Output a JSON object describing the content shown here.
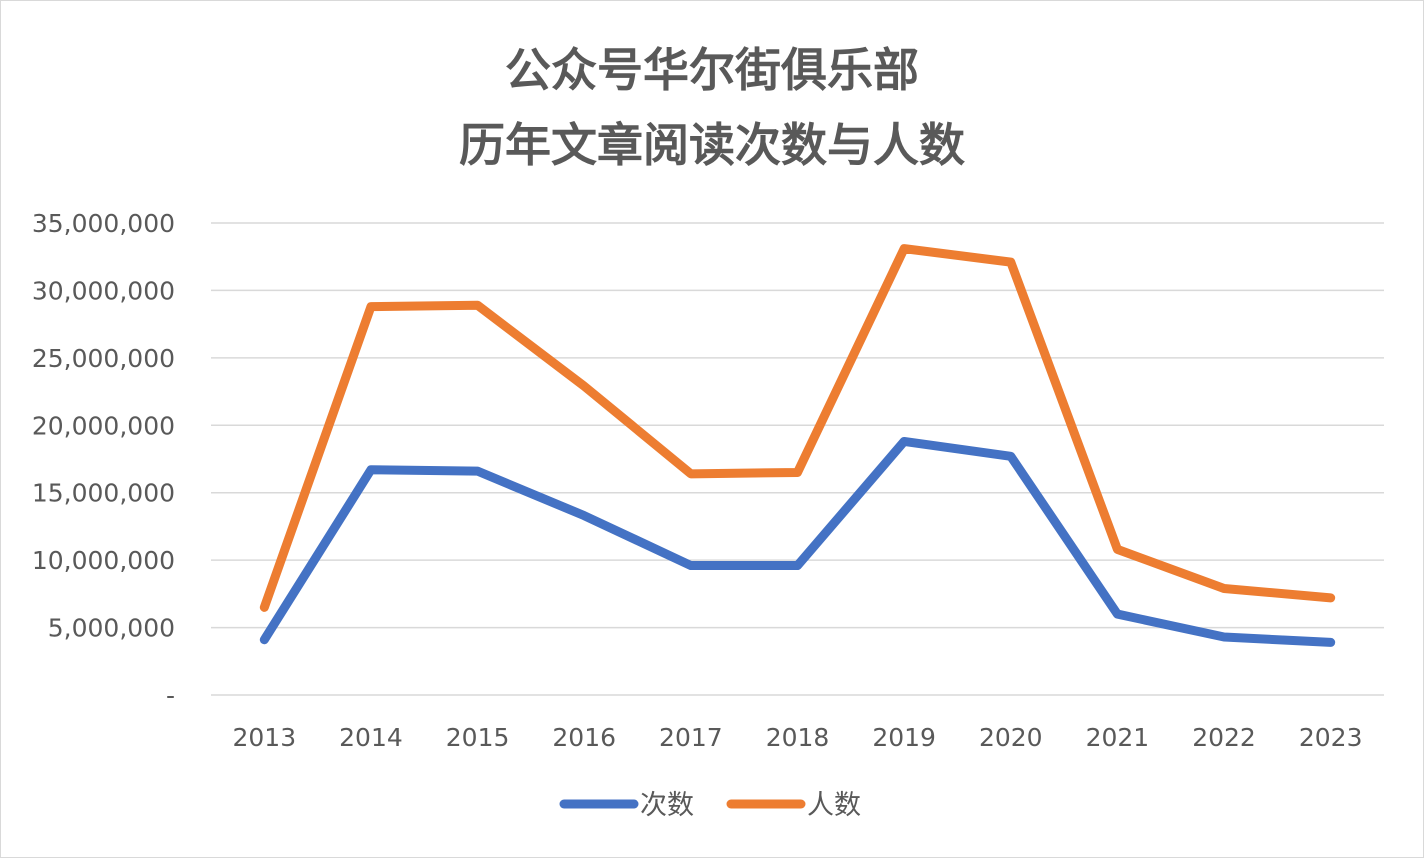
{
  "chart_data": {
    "type": "line",
    "title_lines": [
      "公众号华尔街俱乐部",
      "历年文章阅读次数与人数"
    ],
    "categories": [
      "2013",
      "2014",
      "2015",
      "2016",
      "2017",
      "2018",
      "2019",
      "2020",
      "2021",
      "2022",
      "2023"
    ],
    "series": [
      {
        "name": "次数",
        "color": "#4472C4",
        "values": [
          4100000,
          16700000,
          16600000,
          13300000,
          9600000,
          9600000,
          18800000,
          17700000,
          6000000,
          4300000,
          3900000
        ]
      },
      {
        "name": "人数",
        "color": "#ED7D31",
        "values": [
          6500000,
          28800000,
          28900000,
          22900000,
          16400000,
          16500000,
          33100000,
          32100000,
          10800000,
          7900000,
          7200000
        ]
      }
    ],
    "ylim": [
      0,
      35000000
    ],
    "y_ticks": [
      {
        "value": 0,
        "label": "-"
      },
      {
        "value": 5000000,
        "label": "5,000,000"
      },
      {
        "value": 10000000,
        "label": "10,000,000"
      },
      {
        "value": 15000000,
        "label": "15,000,000"
      },
      {
        "value": 20000000,
        "label": "20,000,000"
      },
      {
        "value": 25000000,
        "label": "25,000,000"
      },
      {
        "value": 30000000,
        "label": "30,000,000"
      },
      {
        "value": 35000000,
        "label": "35,000,000"
      }
    ],
    "grid": true,
    "legend_position": "bottom",
    "xlabel": "",
    "ylabel": ""
  }
}
